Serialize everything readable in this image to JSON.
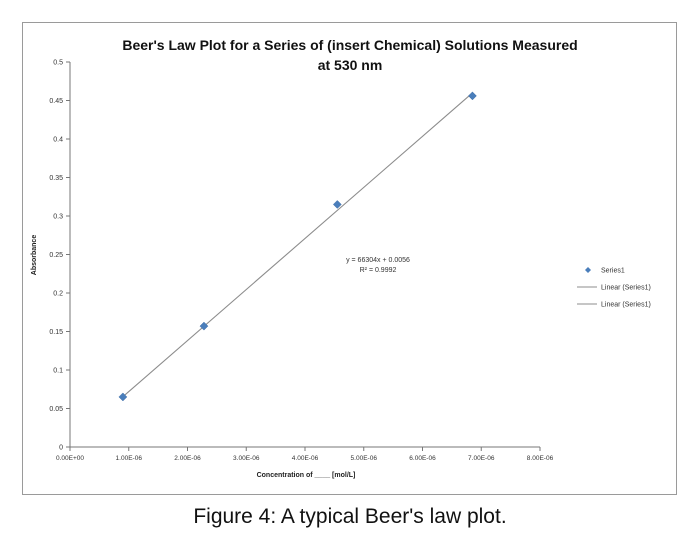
{
  "caption": "Figure 4: A typical Beer's law plot.",
  "chart_data": {
    "type": "scatter",
    "title_line1": "Beer's Law Plot for a Series of (insert Chemical) Solutions Measured",
    "title_line2": "at 530 nm",
    "xlabel": "Concentration of ____ [mol/L]",
    "ylabel": "Absorbance",
    "xlim": [
      0,
      8e-06
    ],
    "ylim": [
      0,
      0.5
    ],
    "x_ticks": [
      0,
      1e-06,
      2e-06,
      3e-06,
      4e-06,
      5e-06,
      6e-06,
      7e-06,
      8e-06
    ],
    "x_tick_labels": [
      "0.00E+00",
      "1.00E-06",
      "2.00E-06",
      "3.00E-06",
      "4.00E-06",
      "5.00E-06",
      "6.00E-06",
      "7.00E-06",
      "8.00E-06"
    ],
    "y_ticks": [
      0,
      0.05,
      0.1,
      0.15,
      0.2,
      0.25,
      0.3,
      0.35,
      0.4,
      0.45,
      0.5
    ],
    "y_tick_labels": [
      "0",
      "0.05",
      "0.1",
      "0.15",
      "0.2",
      "0.25",
      "0.3",
      "0.35",
      "0.4",
      "0.45",
      "0.5"
    ],
    "grid": false,
    "legend_position": "right",
    "series": [
      {
        "name": "Series1",
        "marker": "diamond",
        "color": "#4a7ebb",
        "x": [
          9e-07,
          2.28e-06,
          4.55e-06,
          6.85e-06
        ],
        "y": [
          0.065,
          0.157,
          0.315,
          0.456
        ]
      }
    ],
    "trendline": {
      "slope": 66304,
      "intercept": 0.0056,
      "x_range": [
        9e-07,
        6.85e-06
      ],
      "color": "#8c8c8c",
      "equation": "y = 66304x + 0.0056",
      "r_squared": "R² = 0.9992"
    },
    "legend": [
      {
        "label": "Series1",
        "kind": "marker"
      },
      {
        "label": "Linear (Series1)",
        "kind": "line"
      },
      {
        "label": "Linear (Series1)",
        "kind": "line"
      }
    ]
  }
}
